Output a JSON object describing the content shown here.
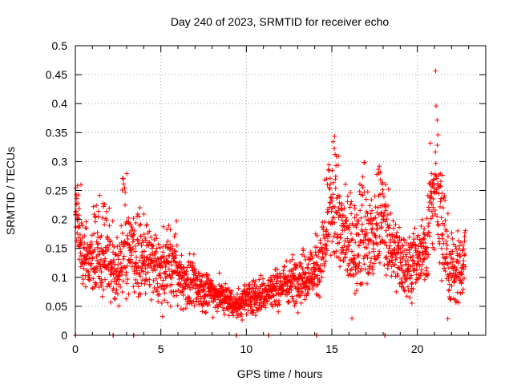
{
  "chart_data": {
    "type": "scatter",
    "title": "Day 240 of 2023, SRMTID for receiver echo",
    "xlabel": "GPS time / hours",
    "ylabel": "SRMTID / TECUs",
    "xlim": [
      0,
      24
    ],
    "ylim": [
      0,
      0.5
    ],
    "x_ticks": [
      0,
      5,
      10,
      15,
      20
    ],
    "y_ticks": [
      0,
      0.05,
      0.1,
      0.15,
      0.2,
      0.25,
      0.3,
      0.35,
      0.4,
      0.45,
      0.5
    ],
    "grid": true,
    "marker": "+",
    "color": "#ff0000",
    "profile": {
      "x": [
        0,
        0.3,
        0.7,
        1.2,
        1.8,
        2.3,
        2.9,
        3.5,
        4.2,
        5.0,
        6.0,
        7.0,
        8.0,
        9.0,
        9.5,
        10.0,
        11.0,
        12.0,
        13.0,
        14.0,
        14.6,
        15.0,
        15.4,
        16.0,
        16.5,
        17.0,
        17.5,
        18.0,
        18.6,
        19.2,
        20.0,
        20.6,
        21.0,
        21.4,
        21.8,
        22.2,
        22.8
      ],
      "y": [
        0.2,
        0.16,
        0.13,
        0.12,
        0.13,
        0.11,
        0.13,
        0.14,
        0.13,
        0.11,
        0.1,
        0.085,
        0.075,
        0.06,
        0.05,
        0.065,
        0.07,
        0.085,
        0.1,
        0.11,
        0.15,
        0.2,
        0.18,
        0.16,
        0.15,
        0.17,
        0.16,
        0.18,
        0.15,
        0.12,
        0.13,
        0.15,
        0.23,
        0.2,
        0.12,
        0.11,
        0.12
      ]
    },
    "spread": {
      "x": [
        0,
        3,
        5,
        7,
        9,
        11,
        13,
        14.5,
        15.5,
        17,
        19,
        20.5,
        21.2,
        22,
        22.8
      ],
      "y": [
        0.035,
        0.04,
        0.035,
        0.025,
        0.015,
        0.02,
        0.025,
        0.035,
        0.05,
        0.05,
        0.035,
        0.03,
        0.07,
        0.04,
        0.03
      ]
    },
    "bursts": [
      {
        "x": 0.1,
        "y": 0.27,
        "w": 0.15
      },
      {
        "x": 1.2,
        "y": 0.25,
        "w": 0.2
      },
      {
        "x": 1.8,
        "y": 0.23,
        "w": 0.2
      },
      {
        "x": 2.9,
        "y": 0.3,
        "w": 0.15
      },
      {
        "x": 3.2,
        "y": 0.21,
        "w": 0.3
      },
      {
        "x": 5.6,
        "y": 0.2,
        "w": 0.25
      },
      {
        "x": 14.9,
        "y": 0.3,
        "w": 0.25
      },
      {
        "x": 15.2,
        "y": 0.35,
        "w": 0.15
      },
      {
        "x": 16.9,
        "y": 0.3,
        "w": 0.2
      },
      {
        "x": 17.9,
        "y": 0.3,
        "w": 0.2
      },
      {
        "x": 20.9,
        "y": 0.39,
        "w": 0.15
      },
      {
        "x": 21.1,
        "y": 0.47,
        "w": 0.1
      },
      {
        "x": 21.0,
        "y": 0.28,
        "w": 0.3
      },
      {
        "x": 22.8,
        "y": 0.2,
        "w": 0.1
      }
    ],
    "time_range": [
      0,
      22.8
    ],
    "sample_step_hours": 0.02,
    "zero_markers_x": [
      0,
      2.2,
      3.4,
      9.4,
      11.3,
      14.1,
      18.1
    ]
  }
}
